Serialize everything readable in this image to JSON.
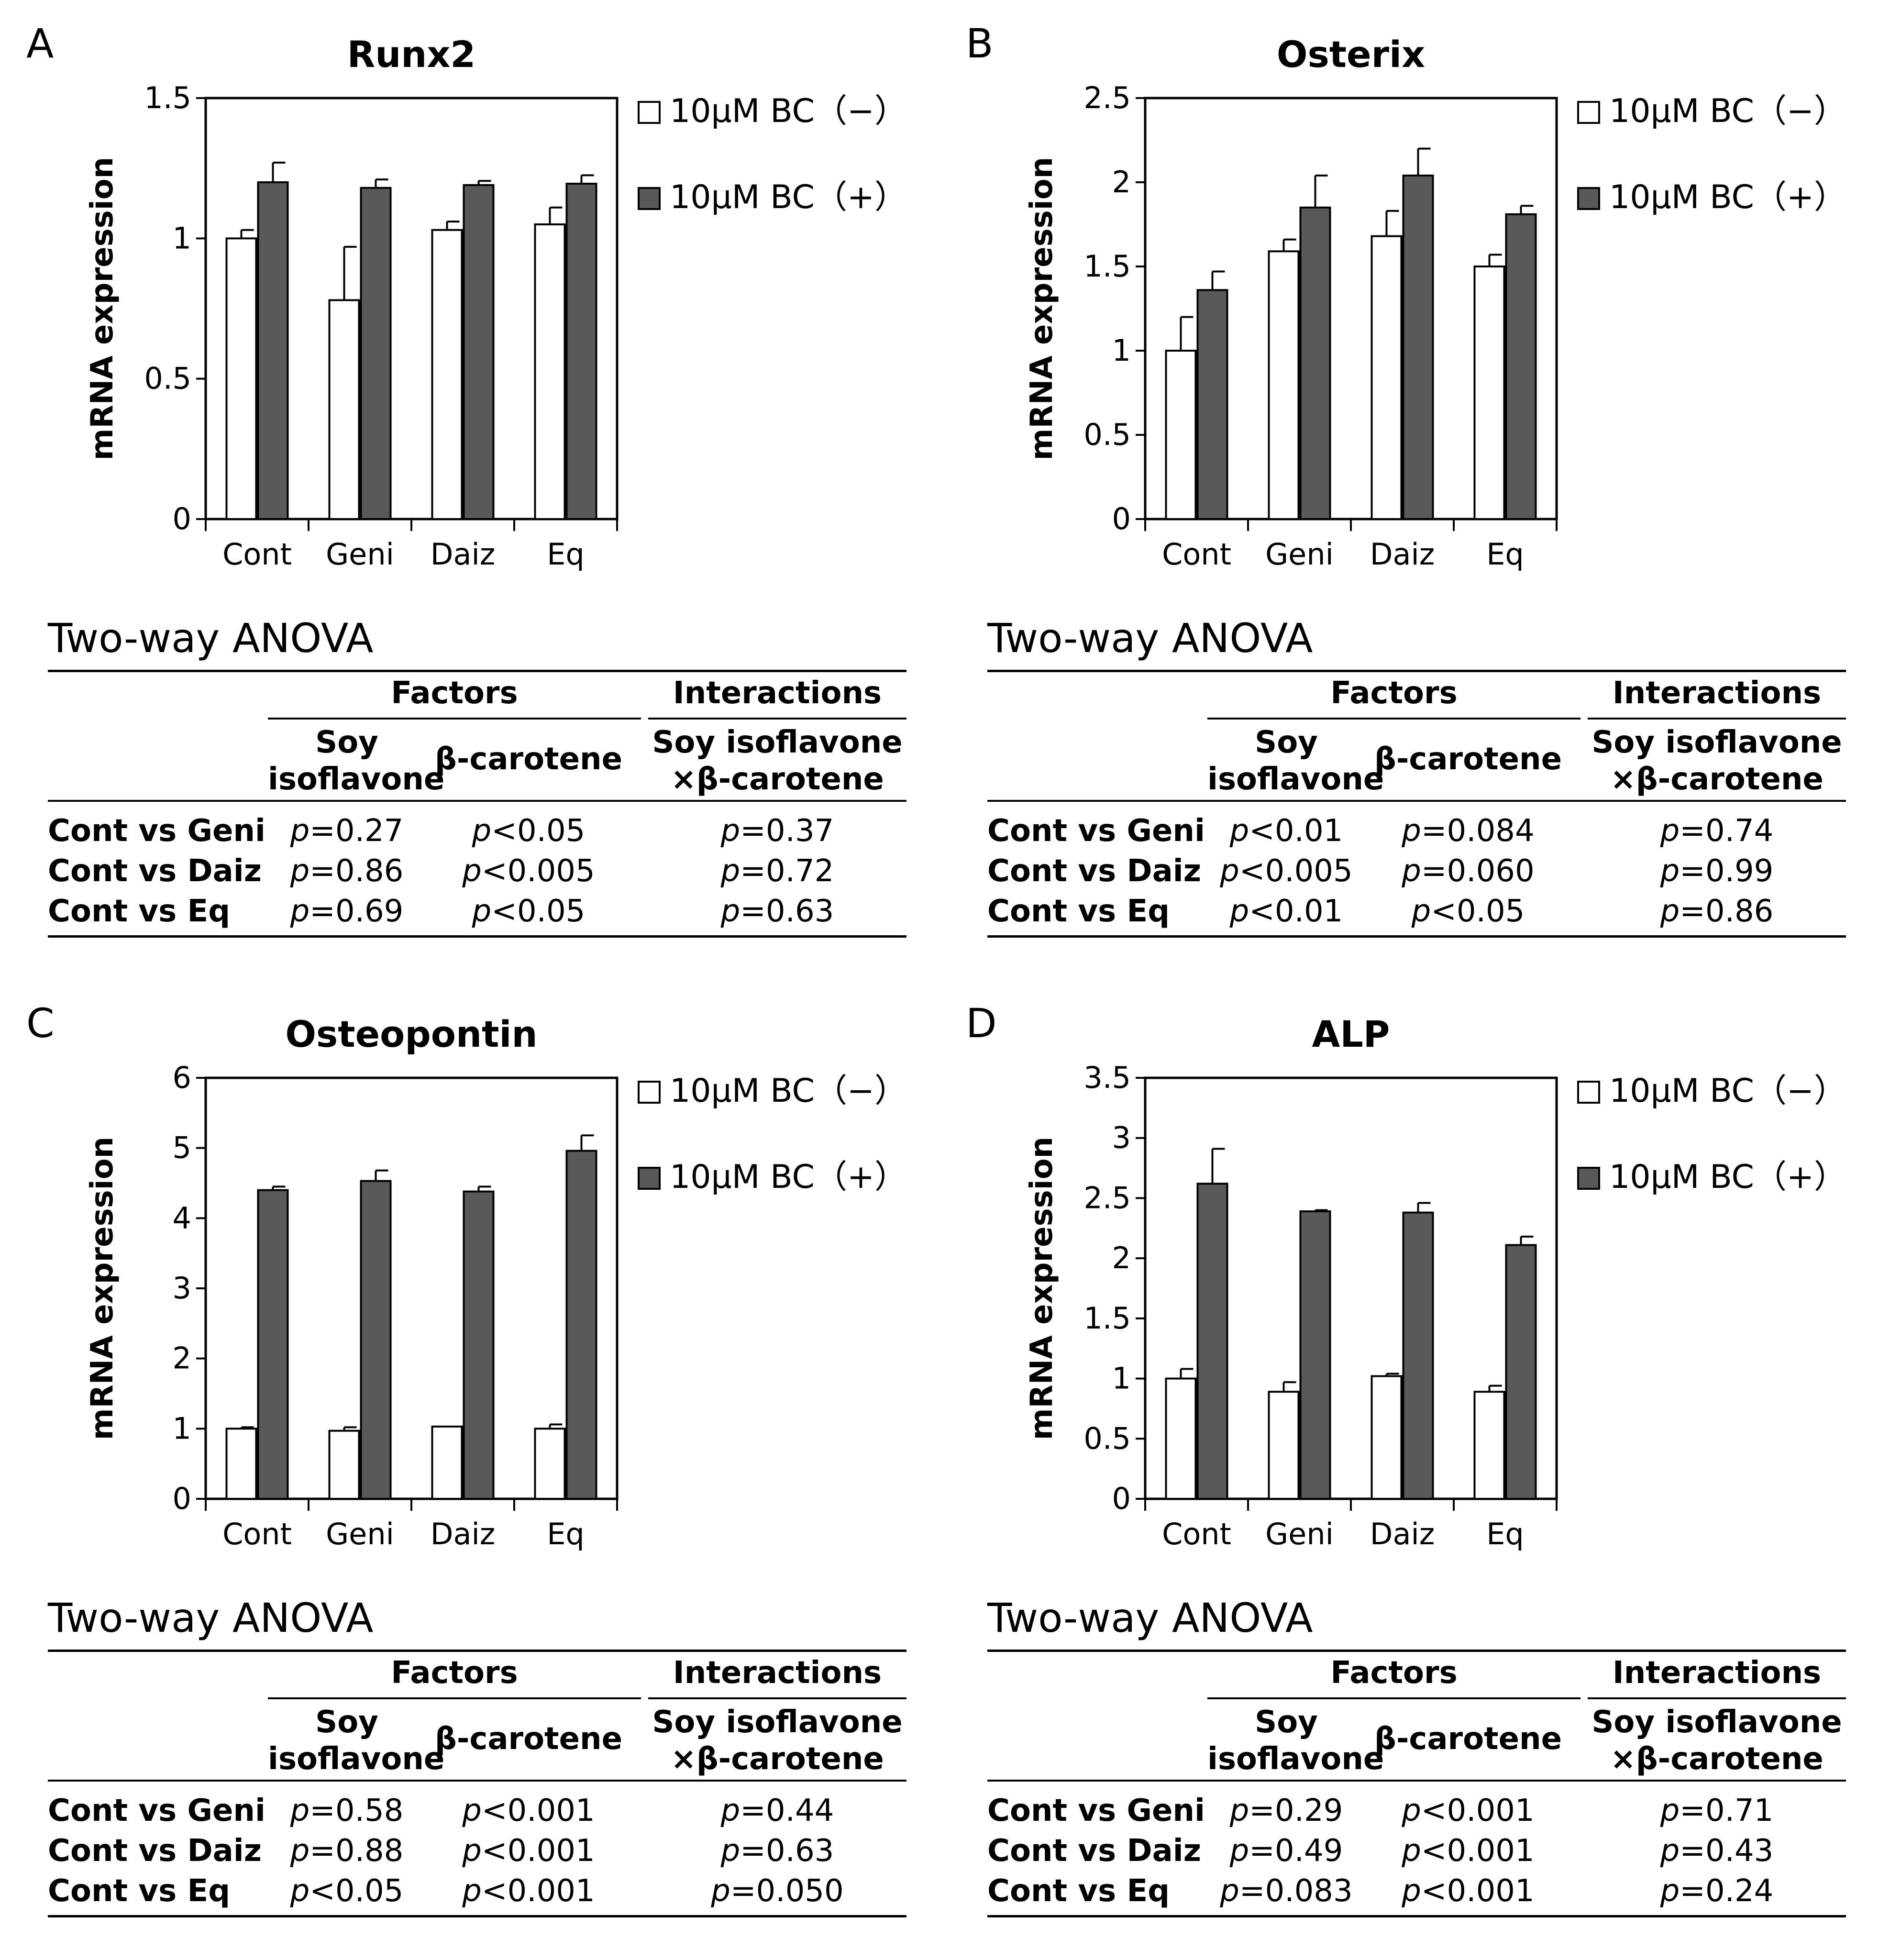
{
  "colors": {
    "bc_minus": "#ffffff",
    "bc_plus": "#595959",
    "stroke": "#000000"
  },
  "legend": [
    "10μM BC（−）",
    "10μM BC（+）"
  ],
  "chart_data": [
    {
      "panel": "A",
      "type": "bar",
      "title": "Runx2",
      "xlabel": "",
      "ylabel": "mRNA expression",
      "categories": [
        "Cont",
        "Geni",
        "Daiz",
        "Eq"
      ],
      "ylim": [
        0,
        1.5
      ],
      "yticks": [
        0,
        0.5,
        1,
        1.5
      ],
      "ytick_labels": [
        "0",
        "0.5",
        "1",
        "1.5"
      ],
      "series": [
        {
          "name": "10μM BC（−）",
          "values": [
            1.0,
            0.78,
            1.03,
            1.05
          ],
          "errors": [
            0.03,
            0.19,
            0.03,
            0.06
          ]
        },
        {
          "name": "10μM BC（+）",
          "values": [
            1.2,
            1.18,
            1.19,
            1.195
          ],
          "errors": [
            0.07,
            0.03,
            0.015,
            0.03
          ]
        }
      ]
    },
    {
      "panel": "B",
      "type": "bar",
      "title": "Osterix",
      "xlabel": "",
      "ylabel": "mRNA expression",
      "categories": [
        "Cont",
        "Geni",
        "Daiz",
        "Eq"
      ],
      "ylim": [
        0,
        2.5
      ],
      "yticks": [
        0,
        0.5,
        1,
        1.5,
        2,
        2.5
      ],
      "ytick_labels": [
        "0",
        "0.5",
        "1",
        "1.5",
        "2",
        "2.5"
      ],
      "series": [
        {
          "name": "10μM BC（−）",
          "values": [
            1.0,
            1.59,
            1.68,
            1.5
          ],
          "errors": [
            0.2,
            0.07,
            0.15,
            0.07
          ]
        },
        {
          "name": "10μM BC（+）",
          "values": [
            1.36,
            1.85,
            2.04,
            1.81
          ],
          "errors": [
            0.11,
            0.19,
            0.16,
            0.05
          ]
        }
      ]
    },
    {
      "panel": "C",
      "type": "bar",
      "title": "Osteopontin",
      "xlabel": "",
      "ylabel": "mRNA expression",
      "categories": [
        "Cont",
        "Geni",
        "Daiz",
        "Eq"
      ],
      "ylim": [
        0,
        6
      ],
      "yticks": [
        0,
        1,
        2,
        3,
        4,
        5,
        6
      ],
      "ytick_labels": [
        "0",
        "1",
        "2",
        "3",
        "4",
        "5",
        "6"
      ],
      "series": [
        {
          "name": "10μM BC（−）",
          "values": [
            1.0,
            0.97,
            1.03,
            1.0
          ],
          "errors": [
            0.02,
            0.05,
            0.0,
            0.06
          ]
        },
        {
          "name": "10μM BC（+）",
          "values": [
            4.4,
            4.53,
            4.38,
            4.96
          ],
          "errors": [
            0.05,
            0.15,
            0.07,
            0.22
          ]
        }
      ]
    },
    {
      "panel": "D",
      "type": "bar",
      "title": "ALP",
      "xlabel": "",
      "ylabel": "mRNA expression",
      "categories": [
        "Cont",
        "Geni",
        "Daiz",
        "Eq"
      ],
      "ylim": [
        0,
        3.5
      ],
      "yticks": [
        0,
        0.5,
        1,
        1.5,
        2,
        2.5,
        3,
        3.5
      ],
      "ytick_labels": [
        "0",
        "0.5",
        "1",
        "1.5",
        "2",
        "2.5",
        "3",
        "3.5"
      ],
      "series": [
        {
          "name": "10μM BC（−）",
          "values": [
            1.0,
            0.89,
            1.02,
            0.89
          ],
          "errors": [
            0.08,
            0.08,
            0.02,
            0.05
          ]
        },
        {
          "name": "10μM BC（+）",
          "values": [
            2.62,
            2.39,
            2.38,
            2.11
          ],
          "errors": [
            0.29,
            0.01,
            0.08,
            0.07
          ]
        }
      ]
    }
  ],
  "anova": {
    "title": "Two-way ANOVA",
    "headers": {
      "factors": "Factors",
      "interactions": "Interactions",
      "soy_line1": "Soy",
      "soy_line2": "isoflavone",
      "beta": "β-carotene",
      "inter_line1": "Soy isoflavone",
      "inter_line2": "×β-carotene"
    },
    "row_labels": [
      "Cont vs Geni",
      "Cont vs Daiz",
      "Cont vs Eq"
    ],
    "p_symbol": "p",
    "tables": [
      [
        [
          "=0.27",
          "<0.05",
          "=0.37"
        ],
        [
          "=0.86",
          "<0.005",
          "=0.72"
        ],
        [
          "=0.69",
          "<0.05",
          "=0.63"
        ]
      ],
      [
        [
          "<0.01",
          "=0.084",
          "=0.74"
        ],
        [
          "<0.005",
          "=0.060",
          "=0.99"
        ],
        [
          "<0.01",
          "<0.05",
          "=0.86"
        ]
      ],
      [
        [
          "=0.58",
          "<0.001",
          "=0.44"
        ],
        [
          "=0.88",
          "<0.001",
          "=0.63"
        ],
        [
          "<0.05",
          "<0.001",
          "=0.050"
        ]
      ],
      [
        [
          "=0.29",
          "<0.001",
          "=0.71"
        ],
        [
          "=0.49",
          "<0.001",
          "=0.43"
        ],
        [
          "=0.083",
          "<0.001",
          "=0.24"
        ]
      ]
    ]
  }
}
